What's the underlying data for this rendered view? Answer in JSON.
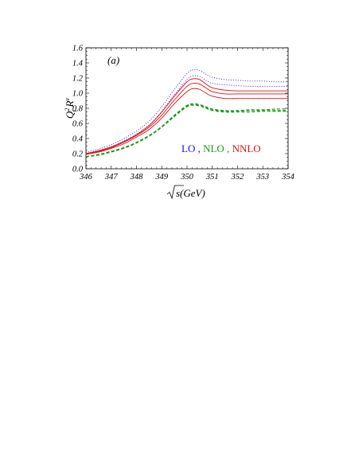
{
  "chart_data": {
    "type": "line",
    "panel_label": "(a)",
    "xlabel": "√s(GeV)",
    "ylabel": "Q_t^2 R^v",
    "xlim": [
      346,
      354
    ],
    "ylim": [
      0.0,
      1.6
    ],
    "x_ticks": [
      "346",
      "347",
      "348",
      "349",
      "350",
      "351",
      "352",
      "353",
      "354"
    ],
    "y_ticks": [
      "0.0",
      "0.2",
      "0.4",
      "0.6",
      "0.8",
      "1.0",
      "1.2",
      "1.4",
      "1.6"
    ],
    "grid": false,
    "legend": {
      "placement": "center-right",
      "items": [
        {
          "label": "LO",
          "color": "#1515d8"
        },
        {
          "label": ",",
          "color": "#1515d8"
        },
        {
          "label": "NLO",
          "color": "#1a9a1a"
        },
        {
          "label": ",",
          "color": "#1a9a1a"
        },
        {
          "label": "NNLO",
          "color": "#e01010"
        }
      ]
    },
    "x": [
      346,
      346.5,
      347,
      347.5,
      348,
      348.5,
      349,
      349.5,
      350,
      350.25,
      350.5,
      350.75,
      351,
      351.5,
      352,
      352.5,
      353,
      353.5,
      354
    ],
    "series": [
      {
        "group": "LO",
        "style": "dotted",
        "color": "#1515d8",
        "values": [
          0.22,
          0.26,
          0.32,
          0.4,
          0.5,
          0.63,
          0.82,
          1.05,
          1.26,
          1.31,
          1.3,
          1.25,
          1.21,
          1.18,
          1.17,
          1.16,
          1.16,
          1.15,
          1.15
        ]
      },
      {
        "group": "LO",
        "style": "dotted",
        "color": "#1515d8",
        "values": [
          0.2,
          0.24,
          0.29,
          0.37,
          0.46,
          0.58,
          0.76,
          0.98,
          1.18,
          1.23,
          1.22,
          1.17,
          1.13,
          1.11,
          1.1,
          1.09,
          1.09,
          1.09,
          1.09
        ]
      },
      {
        "group": "NNLO",
        "style": "solid",
        "color": "#e01010",
        "values": [
          0.2,
          0.24,
          0.29,
          0.36,
          0.45,
          0.57,
          0.75,
          0.96,
          1.15,
          1.19,
          1.18,
          1.12,
          1.07,
          1.04,
          1.03,
          1.03,
          1.03,
          1.03,
          1.03
        ]
      },
      {
        "group": "NNLO",
        "style": "solid",
        "color": "#e01010",
        "values": [
          0.2,
          0.23,
          0.28,
          0.35,
          0.44,
          0.55,
          0.71,
          0.91,
          1.09,
          1.13,
          1.12,
          1.07,
          1.02,
          0.99,
          0.99,
          0.99,
          0.99,
          0.99,
          0.99
        ]
      },
      {
        "group": "NNLO",
        "style": "solid",
        "color": "#e01010",
        "values": [
          0.19,
          0.22,
          0.27,
          0.33,
          0.42,
          0.52,
          0.67,
          0.86,
          1.02,
          1.06,
          1.05,
          1.0,
          0.96,
          0.93,
          0.93,
          0.93,
          0.93,
          0.93,
          0.93
        ]
      },
      {
        "group": "NLO",
        "style": "dashed",
        "color": "#1a9a1a",
        "values": [
          0.16,
          0.19,
          0.23,
          0.28,
          0.35,
          0.44,
          0.56,
          0.71,
          0.84,
          0.86,
          0.85,
          0.82,
          0.79,
          0.77,
          0.77,
          0.78,
          0.78,
          0.79,
          0.79
        ]
      },
      {
        "group": "NLO",
        "style": "dashed",
        "color": "#1a9a1a",
        "values": [
          0.16,
          0.19,
          0.23,
          0.28,
          0.35,
          0.44,
          0.55,
          0.7,
          0.83,
          0.85,
          0.84,
          0.81,
          0.78,
          0.76,
          0.76,
          0.77,
          0.77,
          0.77,
          0.77
        ]
      },
      {
        "group": "NLO",
        "style": "dashed",
        "color": "#1a9a1a",
        "values": [
          0.16,
          0.18,
          0.22,
          0.27,
          0.34,
          0.43,
          0.55,
          0.69,
          0.82,
          0.84,
          0.83,
          0.8,
          0.77,
          0.75,
          0.75,
          0.75,
          0.76,
          0.76,
          0.76
        ]
      }
    ]
  }
}
